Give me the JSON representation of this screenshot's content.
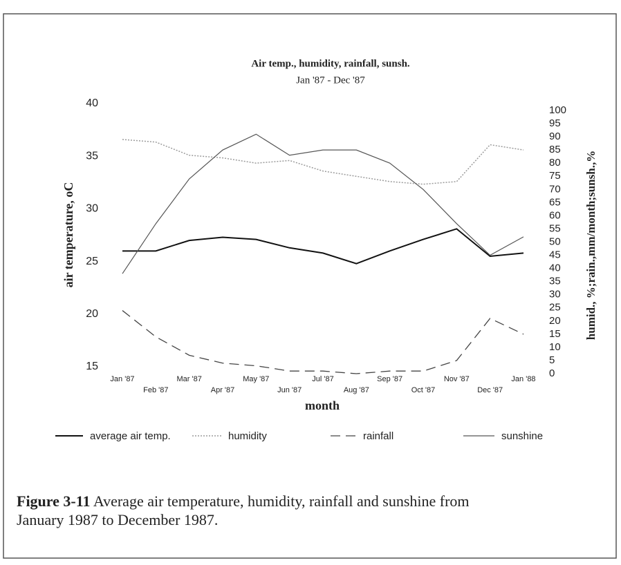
{
  "chart_data": {
    "type": "line",
    "title": "Air temp., humidity, rainfall, sunsh.",
    "subtitle": "Jan '87 - Dec '87",
    "x_label": "month",
    "y_label": "air temperature, oC",
    "y2_label": "humid., %;rain.,mm/month;sunsh.,%",
    "categories": [
      "Jan '87",
      "Feb '87",
      "Mar '87",
      "Apr '87",
      "May '87",
      "Jun '87",
      "Jul '87",
      "Aug '87",
      "Sep '87",
      "Oct '87",
      "Nov '87",
      "Dec '87",
      "Jan '88"
    ],
    "ylim": [
      15,
      40
    ],
    "yticks": [
      15,
      20,
      25,
      30,
      35,
      40
    ],
    "y2lim": [
      0,
      100
    ],
    "y2ticks": [
      0,
      5,
      10,
      15,
      20,
      25,
      30,
      35,
      40,
      45,
      50,
      55,
      60,
      65,
      70,
      75,
      80,
      85,
      90,
      95,
      100
    ],
    "grid": false,
    "legend": "bottom",
    "series": [
      {
        "name": "average air temp.",
        "color": "#111111",
        "line_style": "solid",
        "axis": "y",
        "values": [
          26,
          26,
          27,
          27.3,
          27.1,
          26.3,
          25.8,
          24.8,
          26,
          27.1,
          28.1,
          25.5,
          25.8
        ]
      },
      {
        "name": "humidity",
        "color": "#9a9a9a",
        "line_style": "dotted",
        "axis": "y2",
        "values": [
          89,
          88,
          83,
          82,
          80,
          81,
          77,
          75,
          73,
          72,
          73,
          87,
          85
        ]
      },
      {
        "name": "rainfall",
        "color": "#444444",
        "line_style": "dashed",
        "axis": "y2",
        "values": [
          24,
          14,
          7,
          4,
          3,
          1,
          1,
          0,
          1,
          1,
          5,
          21,
          15
        ]
      },
      {
        "name": "sunshine",
        "color": "#555555",
        "line_style": "thin",
        "axis": "y2",
        "values": [
          38,
          57,
          74,
          85,
          91,
          83,
          85,
          85,
          80,
          70,
          57,
          45,
          52
        ]
      }
    ]
  },
  "caption": {
    "label": "Figure 3-11",
    "text": [
      "Average air temperature, humidity, rainfall and sunshine from",
      "January 1987 to December 1987."
    ]
  }
}
